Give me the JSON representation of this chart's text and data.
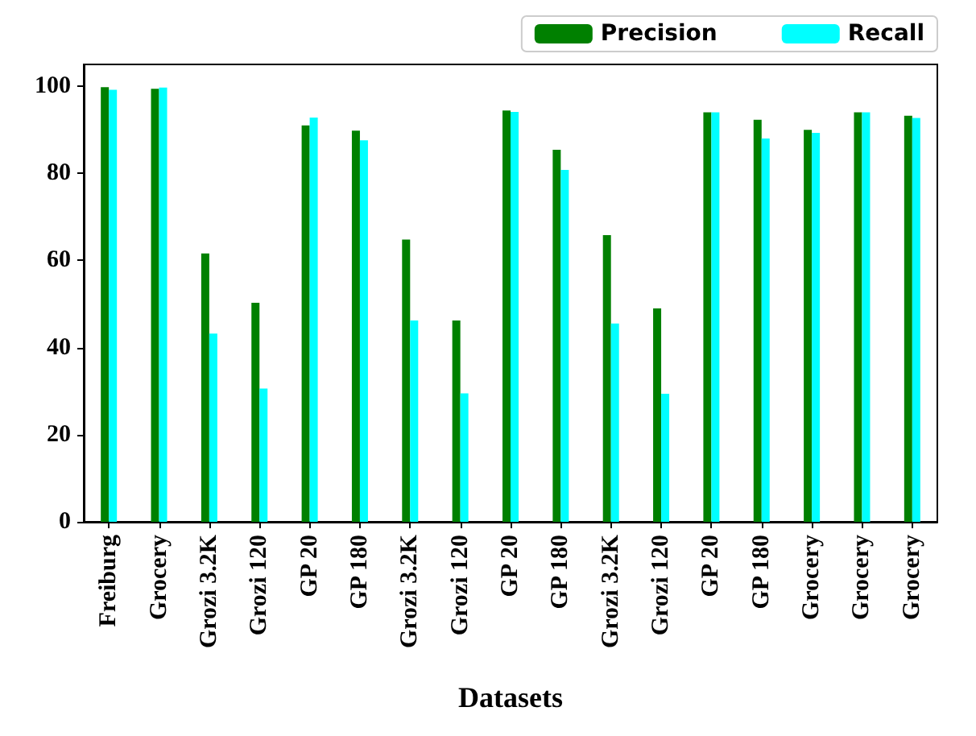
{
  "chart_data": {
    "type": "bar",
    "xlabel": "Datasets",
    "categories": [
      "Freiburg",
      "Grocery",
      "Grozi 3.2K",
      "Grozi 120",
      "GP 20",
      "GP 180",
      "Grozi 3.2K",
      "Grozi 120",
      "GP 20",
      "GP 180",
      "Grozi 3.2K",
      "Grozi 120",
      "GP 20",
      "GP 180",
      "Grocery",
      "Grocery",
      "Grocery"
    ],
    "series": [
      {
        "name": "Precision",
        "color": "#008000",
        "values": [
          99.8,
          99.4,
          61.6,
          50.3,
          91,
          89.8,
          64.8,
          46.2,
          94.4,
          85.4,
          65.8,
          49,
          94,
          92.3,
          90,
          94,
          93.2
        ]
      },
      {
        "name": "Recall",
        "color": "#00ffff",
        "values": [
          99.2,
          99.7,
          43.2,
          30.6,
          92.8,
          87.6,
          46.2,
          29.5,
          94.1,
          80.8,
          45.5,
          29.4,
          94,
          88,
          89.3,
          94,
          92.7
        ]
      }
    ],
    "ylim": [
      0,
      105
    ],
    "yticks": [
      0,
      20,
      40,
      60,
      80,
      100
    ],
    "grid": false,
    "legend": "top right"
  }
}
